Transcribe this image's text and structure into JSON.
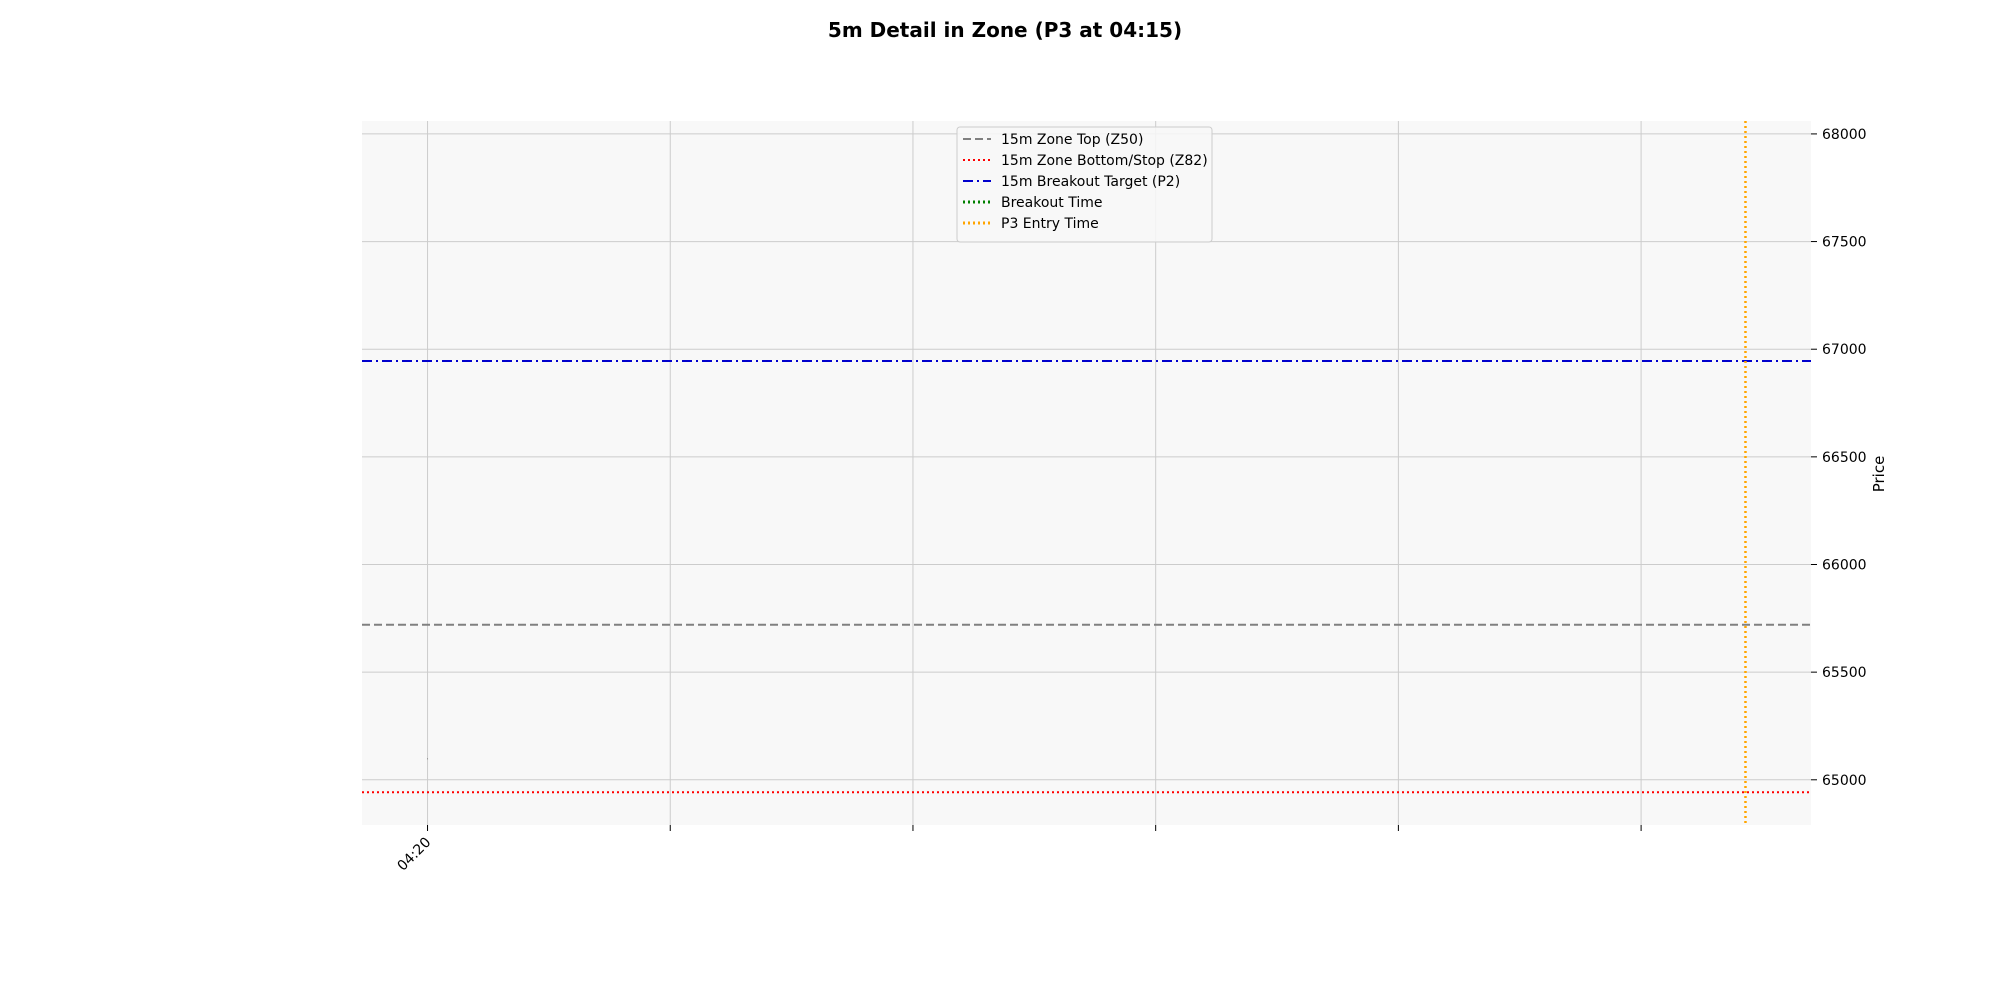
{
  "chart_data": {
    "type": "line",
    "title": "5m Detail in Zone (P3 at 04:15)",
    "xlabel": "",
    "ylabel": "Price",
    "ylim": [
      64790,
      68060
    ],
    "y_ticks": [
      65000,
      65500,
      66000,
      66500,
      67000,
      67500,
      68000
    ],
    "x_ticks": [
      {
        "label": "04:20",
        "pos": 0
      },
      {
        "label": "",
        "pos": 1
      },
      {
        "label": "",
        "pos": 2
      },
      {
        "label": "",
        "pos": 3
      },
      {
        "label": "",
        "pos": 4
      },
      {
        "label": "",
        "pos": 5
      }
    ],
    "xlim": [
      -0.27,
      5.7
    ],
    "grid": true,
    "legend_position": "upper center",
    "series": [
      {
        "name": "15m Zone Top (Z50)",
        "kind": "hline",
        "y": 65720,
        "color": "#808080",
        "style": "dashed"
      },
      {
        "name": "15m Zone Bottom/Stop (Z82)",
        "kind": "hline",
        "y": 64942,
        "color": "#ff0000",
        "style": "dotted"
      },
      {
        "name": "15m Breakout Target (P2)",
        "kind": "hline",
        "y": 66945,
        "color": "#0000cd",
        "style": "dashdot"
      },
      {
        "name": "Breakout Time",
        "kind": "vline",
        "x": null,
        "color": "#008000",
        "style": "dotted"
      },
      {
        "name": "P3 Entry Time",
        "kind": "vline",
        "x": 5.43,
        "color": "#ffa500",
        "style": "dotted"
      }
    ],
    "candles": [
      {
        "x": 0,
        "open": 65100,
        "high": 65100,
        "low": 65095,
        "close": 65098
      }
    ],
    "colors": {
      "plot_background": "#f8f8f8",
      "grid": "#cccccc"
    }
  }
}
